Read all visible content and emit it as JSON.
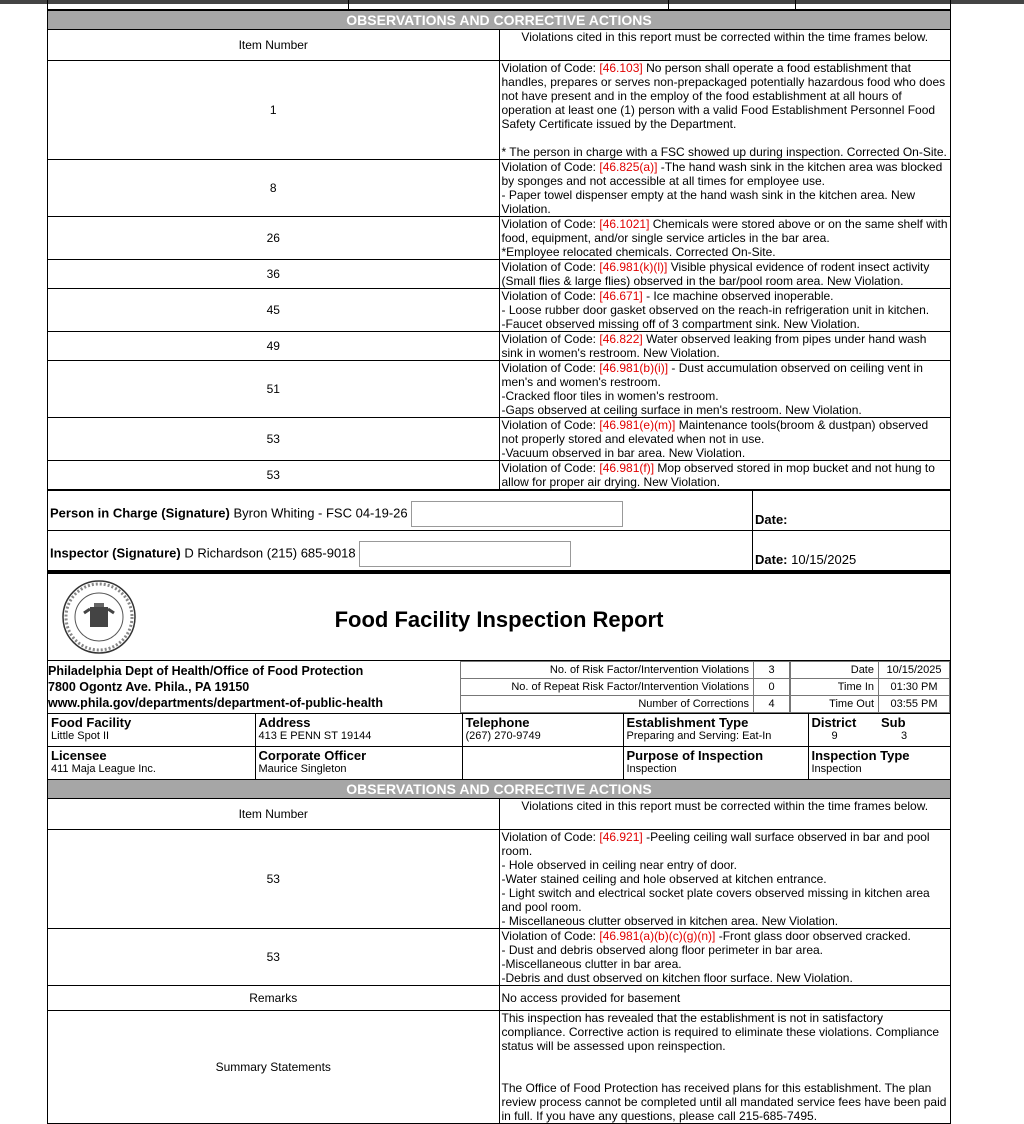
{
  "observations_1": {
    "header": "OBSERVATIONS AND CORRECTIVE ACTIONS",
    "item_col": "Item Number",
    "notice": "Violations cited in this report must be corrected within the time frames below.",
    "items": [
      {
        "number": "1",
        "prefix": "Violation of Code:",
        "code": "[46.103]",
        "text": "No person shall operate a food establishment that handles, prepares or serves non-prepackaged potentially hazardous food who does not have present and in the employ of the food establishment at all hours of operation at least one (1) person with a valid Food Establishment Personnel Food Safety Certificate issued by the Department.",
        "notes": [
          "* The person in charge with a FSC showed up during inspection. Corrected On-Site."
        ]
      },
      {
        "number": "8",
        "prefix": "Violation of Code:",
        "code": "[46.825(a)]",
        "text": "-The hand wash sink in the kitchen area was blocked by sponges and not accessible at all times for employee use.",
        "notes": [
          "- Paper towel dispenser empty at the hand wash sink in the kitchen area. New Violation."
        ]
      },
      {
        "number": "26",
        "prefix": "Violation of Code:",
        "code": "[46.1021]",
        "text": "Chemicals were stored above or on the same shelf with food, equipment, and/or single service articles in the bar area.",
        "notes": [
          "*Employee relocated chemicals. Corrected On-Site."
        ]
      },
      {
        "number": "36",
        "prefix": "Violation of Code:",
        "code": "[46.981(k)(l)]",
        "text": "Visible physical evidence of rodent insect activity (Small flies & large flies) observed in the bar/pool room area. New Violation.",
        "notes": []
      },
      {
        "number": "45",
        "prefix": "Violation of Code:",
        "code": "[46.671]",
        "text": "- Ice machine observed inoperable.",
        "notes": [
          "- Loose rubber door gasket observed on the reach-in refrigeration unit in kitchen.",
          "-Faucet observed missing off of 3 compartment sink. New Violation."
        ]
      },
      {
        "number": "49",
        "prefix": "Violation of Code:",
        "code": "[46.822]",
        "text": "Water observed leaking from pipes under hand wash sink in women's restroom. New Violation.",
        "notes": []
      },
      {
        "number": "51",
        "prefix": "Violation of Code:",
        "code": "[46.981(b)(i)]",
        "text": "- Dust accumulation observed on ceiling vent in men's and women's restroom.",
        "notes": [
          "-Cracked floor tiles in women's restroom.",
          "-Gaps observed at ceiling surface in men's restroom. New Violation."
        ]
      },
      {
        "number": "53",
        "prefix": "Violation of Code:",
        "code": "[46.981(e)(m)]",
        "text": "Maintenance tools(broom & dustpan) observed not properly stored and elevated when not in use.",
        "notes": [
          "-Vacuum observed in bar area. New Violation."
        ]
      },
      {
        "number": "53",
        "prefix": "Violation of Code:",
        "code": "[46.981(f)]",
        "text": "Mop observed stored in mop bucket and not hung to allow for proper air drying. New Violation.",
        "notes": []
      }
    ]
  },
  "signatures": {
    "person_label": "Person in Charge (Signature)",
    "person_name": "Byron Whiting - FSC 04-19-26",
    "person_date_label": "Date:",
    "inspector_label": "Inspector (Signature)",
    "inspector_name": "D Richardson (215) 685-9018",
    "inspector_date_label": "Date:",
    "inspector_date": "10/15/2025"
  },
  "report": {
    "title": "Food Facility Inspection Report",
    "agency": [
      "Philadelphia Dept of Health/Office of Food Protection",
      "7800 Ogontz Ave. Phila., PA 19150",
      "www.phila.gov/departments/department-of-public-health"
    ],
    "counts": [
      {
        "label": "No. of Risk Factor/Intervention Violations",
        "value": 3
      },
      {
        "label": "No. of Repeat Risk Factor/Intervention Violations",
        "value": 0
      },
      {
        "label": "Number of Corrections",
        "value": 4
      }
    ],
    "times": [
      {
        "label": "Date",
        "value": "10/15/2025"
      },
      {
        "label": "Time In",
        "value": "01:30 PM"
      },
      {
        "label": "Time Out",
        "value": "03:55 PM"
      }
    ],
    "fields_row1": [
      {
        "label": "Food Facility",
        "value": "Little Spot II"
      },
      {
        "label": "Address",
        "value": "413 E PENN ST 19144"
      },
      {
        "label": "Telephone",
        "value": "(267) 270-9749"
      },
      {
        "label": "Establishment Type",
        "value": "Preparing and Serving: Eat-In"
      },
      {
        "label": "District",
        "value": "9"
      },
      {
        "label": "Sub",
        "value": "3"
      }
    ],
    "fields_row2": [
      {
        "label": "Licensee",
        "value": "411 Maja League Inc."
      },
      {
        "label": "Corporate Officer",
        "value": "Maurice Singleton"
      },
      {
        "label": "Purpose of Inspection",
        "value": "Inspection"
      },
      {
        "label": "Inspection Type",
        "value": "Inspection"
      }
    ]
  },
  "observations_2": {
    "header": "OBSERVATIONS AND CORRECTIVE ACTIONS",
    "item_col": "Item Number",
    "notice": "Violations cited in this report must be corrected within the time frames below.",
    "items": [
      {
        "number": "53",
        "prefix": "Violation of Code:",
        "code": "[46.921]",
        "text": "-Peeling ceiling wall surface observed in bar and pool room.",
        "notes": [
          "- Hole observed in ceiling near entry of door.",
          "-Water stained ceiling and hole observed at kitchen entrance.",
          "- Light switch and electrical socket plate covers observed missing in kitchen area and pool room.",
          "- Miscellaneous clutter observed in kitchen area. New Violation."
        ]
      },
      {
        "number": "53",
        "prefix": "Violation of Code:",
        "code": "[46.981(a)(b)(c)(g)(n)]",
        "text": "-Front glass door observed cracked.",
        "notes": [
          "- Dust and debris observed along floor perimeter in bar area.",
          "-Miscellaneous clutter in bar area.",
          "-Debris and dust observed on kitchen floor surface. New Violation."
        ]
      }
    ],
    "remarks_label": "Remarks",
    "remarks": "No access provided for basement",
    "summary_label": "Summary Statements",
    "summary": [
      "This inspection has revealed that the establishment is not in satisfactory compliance. Corrective action is required to eliminate these violations. Compliance status will be assessed upon reinspection.",
      "The Office of Food Protection has received plans for this establishment. The plan review process cannot be completed until all mandated service fees have been paid in full. If you have any questions, please call 215-685-7495."
    ]
  }
}
